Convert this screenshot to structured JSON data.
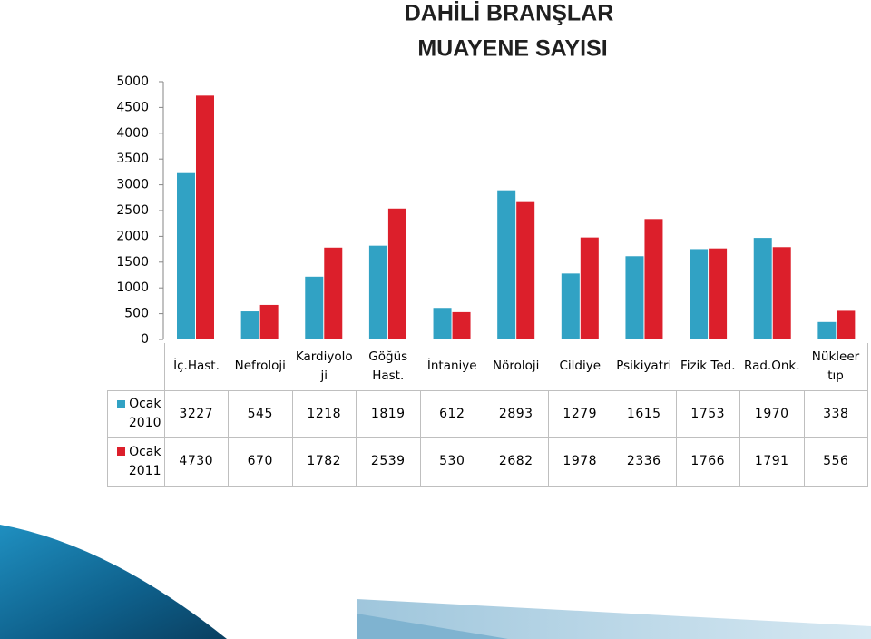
{
  "chart_data": {
    "type": "bar",
    "title": "DAHİLİ BRANŞLAR",
    "subtitle": "MUAYENE SAYISI",
    "categories": [
      "İç.Hast.",
      "Nefroloji",
      "Kardiyoloji",
      "Göğüs Hast.",
      "İntaniye",
      "Nöroloji",
      "Cildiye",
      "Psikiyatri",
      "Fizik Ted.",
      "Rad.Onk.",
      "Nükleer tıp"
    ],
    "series": [
      {
        "name": "Ocak 2010",
        "color": "#31a2c4",
        "values": [
          3227,
          545,
          1218,
          1819,
          612,
          2893,
          1279,
          1615,
          1753,
          1970,
          338
        ]
      },
      {
        "name": "Ocak 2011",
        "color": "#dc1f2b",
        "values": [
          4730,
          670,
          1782,
          2539,
          530,
          2682,
          1978,
          2336,
          1766,
          1791,
          556
        ]
      }
    ],
    "ylim": [
      0,
      5000
    ],
    "yticks": [
      0,
      500,
      1000,
      1500,
      2000,
      2500,
      3000,
      3500,
      4000,
      4500,
      5000
    ]
  }
}
